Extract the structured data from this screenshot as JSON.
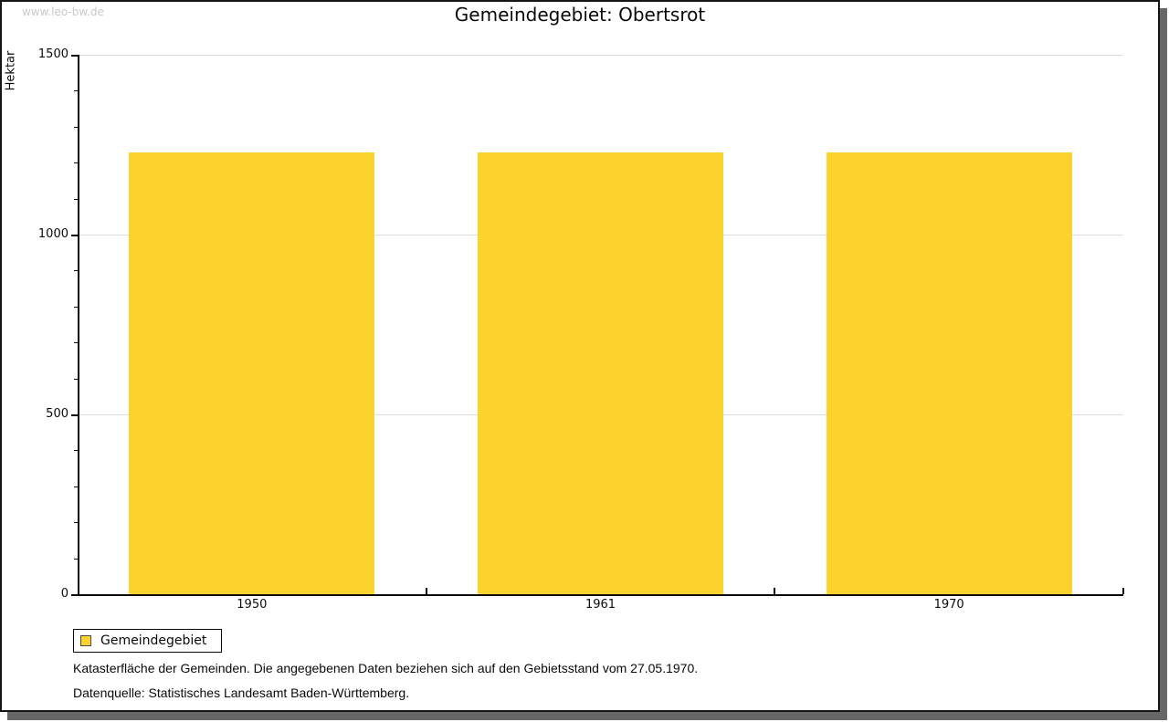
{
  "watermark": "www.leo-bw.de",
  "header": {
    "title": "Gemeindegebiet: Obertsrot"
  },
  "chart_data": {
    "type": "bar",
    "title": "Gemeindegebiet: Obertsrot",
    "categories": [
      "1950",
      "1961",
      "1970"
    ],
    "series": [
      {
        "name": "Gemeindegebiet",
        "color": "#fcd32c",
        "values": [
          1228,
          1228,
          1228
        ]
      }
    ],
    "xlabel": "",
    "ylabel": "Hektar",
    "ylim": [
      0,
      1500
    ],
    "yticks": [
      0,
      500,
      1000,
      1500
    ],
    "ytick_minor_step": 100,
    "grid": true,
    "gridline_color": "#dcdcdc",
    "legend_position": "bottom-left"
  },
  "legend": {
    "items": [
      {
        "label": "Gemeindegebiet",
        "color": "#fcd32c"
      }
    ]
  },
  "footnotes": [
    "Katasterfläche der Gemeinden. Die angegebenen Daten beziehen sich auf den Gebietsstand vom 27.05.1970.",
    "Datenquelle: Statistisches Landesamt Baden-Württemberg."
  ],
  "colors": {
    "bar": "#fcd32c",
    "gridline": "#dcdcdc",
    "axis": "#0a0a0a",
    "watermark": "#c9c9c9",
    "frame_shadow": "#676767"
  }
}
